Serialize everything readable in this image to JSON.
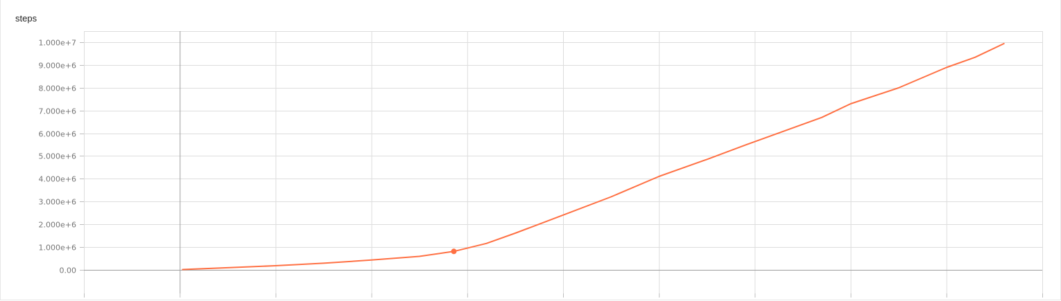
{
  "chart_data": {
    "type": "line",
    "title": "steps",
    "xlabel": "",
    "ylabel": "",
    "xlim": [
      -1,
      9
    ],
    "ylim": [
      -1050000,
      10500000
    ],
    "y_ticks": [
      {
        "value": 0,
        "label": "0.00"
      },
      {
        "value": 1000000,
        "label": "1.000e+6"
      },
      {
        "value": 2000000,
        "label": "2.000e+6"
      },
      {
        "value": 3000000,
        "label": "3.000e+6"
      },
      {
        "value": 4000000,
        "label": "4.000e+6"
      },
      {
        "value": 5000000,
        "label": "5.000e+6"
      },
      {
        "value": 6000000,
        "label": "6.000e+6"
      },
      {
        "value": 7000000,
        "label": "7.000e+6"
      },
      {
        "value": 8000000,
        "label": "8.000e+6"
      },
      {
        "value": 9000000,
        "label": "9.000e+6"
      },
      {
        "value": 10000000,
        "label": "1.000e+7"
      }
    ],
    "x_gridlines": [
      -1,
      0,
      1,
      2,
      3,
      4,
      5,
      6,
      7,
      8,
      9
    ],
    "grid": true,
    "series": [
      {
        "color": "#ff7043",
        "x": [
          0.03,
          0.5,
          1,
          1.5,
          2,
          2.5,
          2.86,
          3.2,
          3.5,
          4,
          4.5,
          5,
          5.5,
          5.9,
          6.3,
          6.7,
          7,
          7.5,
          8,
          8.3,
          8.6
        ],
        "y": [
          0,
          80000,
          170000,
          280000,
          420000,
          580000,
          800000,
          1150000,
          1600000,
          2400000,
          3200000,
          4100000,
          4850000,
          5480000,
          6090000,
          6700000,
          7300000,
          8000000,
          8900000,
          9350000,
          9950000
        ]
      }
    ],
    "highlighted_point": {
      "x": 2.86,
      "y": 800000
    }
  }
}
